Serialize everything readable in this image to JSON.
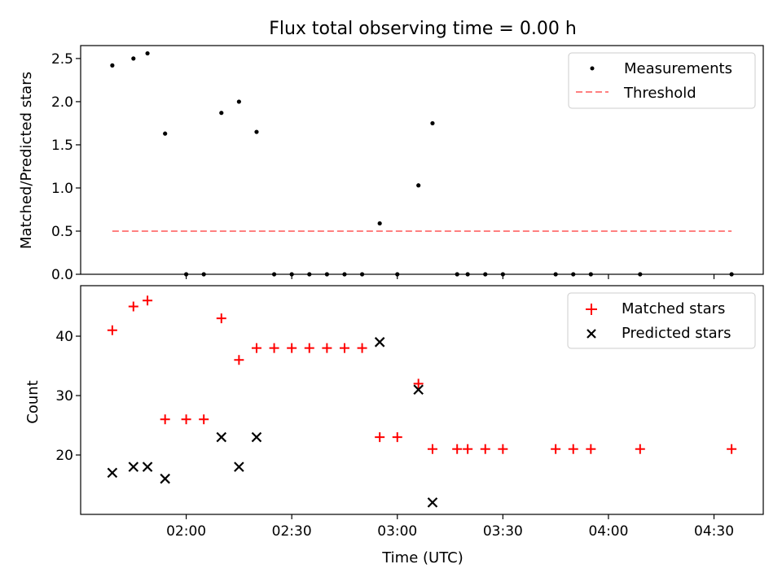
{
  "figure": {
    "title": "Flux total observing time = 0.00 h"
  },
  "chart_data": [
    {
      "type": "scatter",
      "panel": "top",
      "title": "Flux total observing time = 0.00 h",
      "xlabel": "",
      "ylabel": "Matched/Predicted stars",
      "xlim_minutes_utc": [
        90,
        284
      ],
      "ylim": [
        0,
        2.65
      ],
      "yticks": [
        0.0,
        0.5,
        1.0,
        1.5,
        2.0,
        2.5
      ],
      "ytick_labels": [
        "0.0",
        "0.5",
        "1.0",
        "1.5",
        "2.0",
        "2.5"
      ],
      "xticks_minutes": [
        120,
        150,
        180,
        210,
        240,
        270
      ],
      "series": [
        {
          "name": "Measurements",
          "marker": "dot",
          "color": "#000000",
          "x_minutes": [
            99,
            105,
            109,
            114,
            120,
            125,
            130,
            135,
            140,
            145,
            150,
            155,
            160,
            165,
            170,
            175,
            180,
            186,
            190,
            197,
            200,
            205,
            210,
            225,
            230,
            235,
            249,
            275
          ],
          "y": [
            2.42,
            2.5,
            2.56,
            1.63,
            0.0,
            0.0,
            1.87,
            2.0,
            1.65,
            0.0,
            0.0,
            0.0,
            0.0,
            0.0,
            0.0,
            0.59,
            0.0,
            1.03,
            1.75,
            0.0,
            0.0,
            0.0,
            0.0,
            0.0,
            0.0,
            0.0,
            0.0,
            0.0
          ]
        },
        {
          "name": "Threshold",
          "style": "dashed",
          "color": "#ff8080",
          "x_minutes": [
            99,
            275
          ],
          "y": [
            0.5,
            0.5
          ]
        }
      ],
      "legend": {
        "position": "top-right",
        "entries": [
          "Measurements",
          "Threshold"
        ]
      }
    },
    {
      "type": "scatter",
      "panel": "bottom",
      "xlabel": "Time (UTC)",
      "ylabel": "Count",
      "xlim_minutes_utc": [
        90,
        284
      ],
      "ylim": [
        10,
        48.5
      ],
      "yticks": [
        20,
        30,
        40
      ],
      "ytick_labels": [
        "20",
        "30",
        "40"
      ],
      "xticks_minutes": [
        120,
        150,
        180,
        210,
        240,
        270
      ],
      "xtick_labels": [
        "02:00",
        "02:30",
        "03:00",
        "03:30",
        "04:00",
        "04:30"
      ],
      "series": [
        {
          "name": "Matched stars",
          "marker": "plus",
          "color": "#ff0000",
          "x_minutes": [
            99,
            105,
            109,
            114,
            120,
            125,
            130,
            135,
            140,
            145,
            150,
            155,
            160,
            165,
            170,
            175,
            180,
            186,
            190,
            197,
            200,
            205,
            210,
            225,
            230,
            235,
            249,
            275
          ],
          "y": [
            41,
            45,
            46,
            26,
            26,
            26,
            43,
            36,
            38,
            38,
            38,
            38,
            38,
            38,
            38,
            23,
            23,
            32,
            21,
            21,
            21,
            21,
            21,
            21,
            21,
            21,
            21,
            21
          ]
        },
        {
          "name": "Predicted stars",
          "marker": "x",
          "color": "#000000",
          "x_minutes": [
            99,
            105,
            109,
            114,
            130,
            135,
            140,
            175,
            186,
            190
          ],
          "y": [
            17,
            18,
            18,
            16,
            23,
            18,
            23,
            39,
            31,
            12
          ]
        }
      ],
      "legend": {
        "position": "top-right",
        "entries": [
          "Matched stars",
          "Predicted stars"
        ]
      }
    }
  ]
}
